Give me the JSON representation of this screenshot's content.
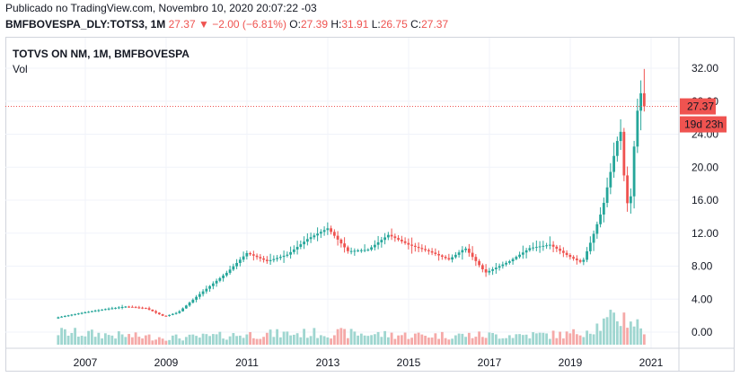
{
  "header": {
    "published": "Publicado no TradingView.com, Novembro 10, 2020 20:07:22 -03",
    "symbol": "BMFBOVESPA_DLY:TOTS3, 1M",
    "last": "27.37",
    "change_arrow": "▼",
    "change": "−2.00 (−6.81%)",
    "o_label": "O:",
    "o_value": "27.39",
    "h_label": "H:",
    "h_value": "31.91",
    "l_label": "L:",
    "l_value": "26.75",
    "c_label": "C:",
    "c_value": "27.37"
  },
  "legend": {
    "title": "TOTVS ON NM, 1M, BMFBOVESPA",
    "volume_label": "Vol"
  },
  "price_badge": "27.37",
  "countdown_badge": "19d 23h",
  "colors": {
    "up": "#26a69a",
    "down": "#ef5350",
    "up_volume": "#9fd6d0",
    "down_volume": "#f5a9a8",
    "text": "#131722",
    "border": "#d1d4dc"
  },
  "chart_data": {
    "type": "candlestick",
    "title": "TOTVS ON NM, 1M, BMFBOVESPA",
    "y_ticks": [
      "32.00",
      "28.00",
      "24.00",
      "20.00",
      "16.00",
      "12.00",
      "8.00",
      "4.00",
      "0.00"
    ],
    "ylim": [
      -1,
      32.5
    ],
    "x_ticks": [
      "2007",
      "2009",
      "2011",
      "2013",
      "2015",
      "2017",
      "2019",
      "2021"
    ],
    "x_tick_years": [
      2007,
      2009,
      2011,
      2013,
      2015,
      2017,
      2019,
      2021
    ],
    "xlim": [
      2006.0,
      2021.6
    ],
    "last_close": 27.37,
    "keypoints": [
      [
        2006.33,
        1.8
      ],
      [
        2006.75,
        2.2
      ],
      [
        2007.5,
        2.8
      ],
      [
        2008.0,
        3.1
      ],
      [
        2008.5,
        2.9
      ],
      [
        2008.95,
        1.9
      ],
      [
        2009.3,
        2.4
      ],
      [
        2009.8,
        4.5
      ],
      [
        2010.5,
        7.2
      ],
      [
        2011.0,
        9.6
      ],
      [
        2011.5,
        8.6
      ],
      [
        2012.0,
        9.4
      ],
      [
        2012.5,
        11.3
      ],
      [
        2013.0,
        12.6
      ],
      [
        2013.5,
        9.8
      ],
      [
        2014.0,
        10.0
      ],
      [
        2014.5,
        11.8
      ],
      [
        2015.0,
        10.6
      ],
      [
        2015.5,
        9.8
      ],
      [
        2016.0,
        8.8
      ],
      [
        2016.4,
        10.2
      ],
      [
        2016.9,
        7.2
      ],
      [
        2017.5,
        8.6
      ],
      [
        2018.0,
        10.2
      ],
      [
        2018.5,
        10.6
      ],
      [
        2019.0,
        9.1
      ],
      [
        2019.3,
        8.4
      ],
      [
        2019.55,
        11.5
      ],
      [
        2019.8,
        15.0
      ],
      [
        2020.0,
        19.5
      ],
      [
        2020.15,
        23.0
      ],
      [
        2020.3,
        25.0
      ],
      [
        2020.35,
        15.0
      ],
      [
        2020.5,
        16.5
      ],
      [
        2020.6,
        24.0
      ],
      [
        2020.7,
        28.5
      ],
      [
        2020.79,
        29.4
      ],
      [
        2020.86,
        27.37
      ]
    ],
    "volume_keypoints": [
      [
        2006.33,
        1.6
      ],
      [
        2008.5,
        1.0
      ],
      [
        2009.5,
        0.9
      ],
      [
        2011.0,
        1.3
      ],
      [
        2013.0,
        1.5
      ],
      [
        2015.0,
        1.2
      ],
      [
        2017.0,
        1.2
      ],
      [
        2019.0,
        1.3
      ],
      [
        2019.8,
        2.6
      ],
      [
        2020.2,
        3.6
      ],
      [
        2020.5,
        3.2
      ],
      [
        2020.86,
        1.8
      ]
    ]
  }
}
